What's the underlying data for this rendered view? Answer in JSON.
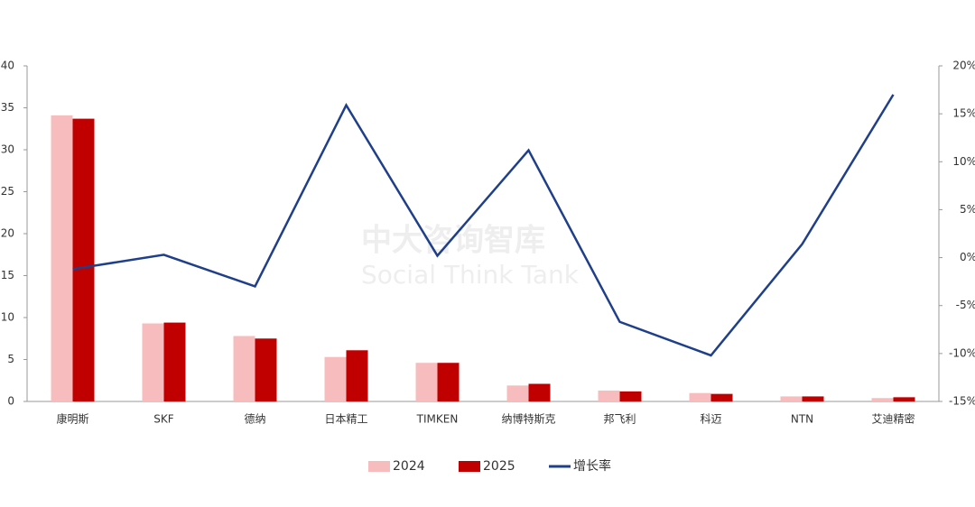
{
  "chart_data": {
    "type": "bar-line",
    "categories": [
      "康明斯",
      "SKF",
      "德纳",
      "日本精工",
      "TIMKEN",
      "纳博特斯克",
      "邦飞利",
      "科迈",
      "NTN",
      "艾迪精密"
    ],
    "series": [
      {
        "name": "2024",
        "color": "#f7bcbd",
        "values": [
          34.1,
          9.3,
          7.8,
          5.3,
          4.6,
          1.9,
          1.3,
          1.0,
          0.6,
          0.4
        ]
      },
      {
        "name": "2025",
        "color": "#c00000",
        "values": [
          33.7,
          9.4,
          7.5,
          6.1,
          4.6,
          2.1,
          1.2,
          0.9,
          0.6,
          0.5
        ]
      },
      {
        "name": "增长率",
        "color": "#1f3f8a",
        "axis": "y2",
        "type": "line",
        "values": [
          -1.2,
          0.3,
          -3.0,
          15.9,
          0.2,
          11.2,
          -6.7,
          -10.2,
          1.4,
          17.0
        ]
      }
    ],
    "ylim": [
      0,
      40
    ],
    "yticks": [
      0,
      5,
      10,
      15,
      20,
      25,
      30,
      35,
      40
    ],
    "y2lim": [
      -15,
      20
    ],
    "y2ticks": [
      {
        "value": -15,
        "label": "-15%"
      },
      {
        "value": -10,
        "label": "-10%"
      },
      {
        "value": -5,
        "label": "-5%"
      },
      {
        "value": 0,
        "label": "0%"
      },
      {
        "value": 5,
        "label": "5%"
      },
      {
        "value": 10,
        "label": "10%"
      },
      {
        "value": 15,
        "label": "15%"
      },
      {
        "value": 20,
        "label": "20%"
      }
    ],
    "watermark": [
      "中大咨询智库",
      "Social Think Tank"
    ]
  }
}
